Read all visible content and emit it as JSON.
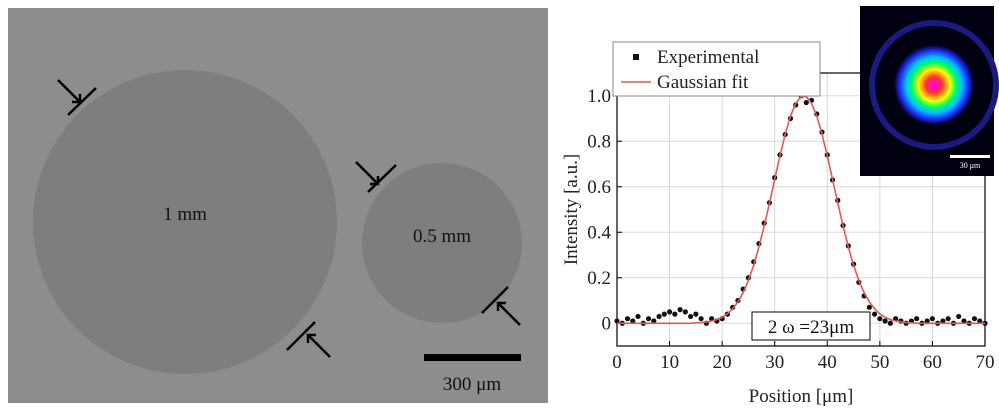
{
  "micrograph": {
    "large_label": "1 mm",
    "small_label": "0.5 mm",
    "scale_label": "300 μm"
  },
  "chart_data": {
    "type": "line",
    "xlabel": "Position [μm]",
    "ylabel": "Intensity [a.u.]",
    "annotation": "2 ω =23μm",
    "inset_scale_label": "30 μm",
    "x": [
      0,
      1,
      2,
      3,
      4,
      5,
      6,
      7,
      8,
      9,
      10,
      11,
      12,
      13,
      14,
      15,
      16,
      17,
      18,
      19,
      20,
      21,
      22,
      23,
      24,
      25,
      26,
      27,
      28,
      29,
      30,
      31,
      32,
      33,
      34,
      35,
      36,
      37,
      38,
      39,
      40,
      41,
      42,
      43,
      44,
      45,
      46,
      47,
      48,
      49,
      50,
      51,
      52,
      53,
      54,
      55,
      56,
      57,
      58,
      59,
      60,
      61,
      62,
      63,
      64,
      65,
      66,
      67,
      68,
      69,
      70
    ],
    "series": [
      {
        "name": "Experimental",
        "color": "#111111",
        "mode": "markers",
        "values": [
          0.01,
          0.0,
          0.02,
          0.01,
          0.03,
          0.0,
          0.02,
          0.01,
          0.03,
          0.04,
          0.05,
          0.04,
          0.06,
          0.05,
          0.03,
          0.04,
          0.02,
          0.0,
          0.02,
          0.01,
          0.02,
          0.04,
          0.07,
          0.1,
          0.15,
          0.2,
          0.27,
          0.35,
          0.44,
          0.53,
          0.64,
          0.74,
          0.83,
          0.9,
          0.96,
          1.0,
          0.97,
          0.98,
          0.92,
          0.84,
          0.74,
          0.63,
          0.54,
          0.43,
          0.34,
          0.26,
          0.18,
          0.12,
          0.07,
          0.04,
          0.02,
          0.01,
          0.0,
          0.02,
          0.01,
          0.0,
          0.01,
          0.02,
          0.0,
          0.01,
          0.02,
          0.0,
          0.01,
          0.02,
          0.0,
          0.03,
          0.01,
          0.0,
          0.02,
          0.01,
          0.0
        ]
      },
      {
        "name": "Gaussian fit",
        "color": "#e05a5a",
        "mode": "line",
        "values": [
          0,
          0,
          0,
          0,
          0,
          0,
          0,
          0,
          0,
          0,
          0,
          0,
          0,
          0,
          0,
          0.002,
          0.003,
          0.006,
          0.01,
          0.016,
          0.026,
          0.041,
          0.064,
          0.094,
          0.135,
          0.189,
          0.255,
          0.335,
          0.427,
          0.528,
          0.633,
          0.736,
          0.831,
          0.91,
          0.967,
          0.996,
          0.996,
          0.967,
          0.91,
          0.831,
          0.736,
          0.633,
          0.528,
          0.427,
          0.335,
          0.255,
          0.189,
          0.135,
          0.094,
          0.064,
          0.041,
          0.026,
          0.016,
          0.01,
          0.006,
          0.003,
          0.002,
          0,
          0,
          0,
          0,
          0,
          0,
          0,
          0,
          0,
          0,
          0,
          0,
          0,
          0
        ]
      }
    ],
    "xlim": [
      0,
      70
    ],
    "xticks": [
      0,
      10,
      20,
      30,
      40,
      50,
      60,
      70
    ],
    "ylim": [
      -0.1,
      1.1
    ],
    "yticks": [
      0,
      0.2,
      0.4,
      0.6,
      0.8,
      {
        "value": 1,
        "label": "1.0"
      }
    ],
    "grid": true,
    "legend": "upper left"
  }
}
